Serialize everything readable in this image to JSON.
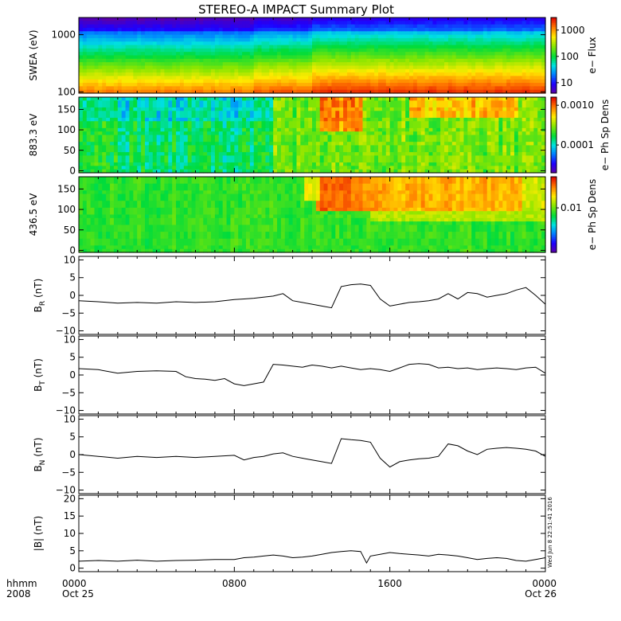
{
  "title": "STEREO-A IMPACT Summary Plot",
  "timestamp": "Wed Jun 8 22:51:41 2016",
  "x_axis": {
    "row1_label": "hhmm",
    "row2_label": "2008",
    "ticks": [
      {
        "hours": 0,
        "label": "0000",
        "date": "Oct 25"
      },
      {
        "hours": 8,
        "label": "0800",
        "date": ""
      },
      {
        "hours": 16,
        "label": "1600",
        "date": ""
      },
      {
        "hours": 24,
        "label": "0000",
        "date": "Oct 26"
      }
    ]
  },
  "chart_data": [
    {
      "type": "heatmap",
      "ylabel": "SWEA (eV)",
      "scale": "log",
      "ylim": [
        95,
        2000
      ],
      "yticks": [
        100,
        1000
      ],
      "ytick_labels": [
        "100",
        "1000"
      ],
      "colorbar_label": "e− Flux",
      "colorbar_ticks": [
        10,
        100,
        1000
      ],
      "colorbar_tick_labels": [
        "10",
        "100",
        "1000"
      ],
      "colorbar_log": true,
      "colorbar_range": [
        4,
        3000
      ]
    },
    {
      "type": "heatmap",
      "ylabel": "883.3 eV",
      "scale": "linear",
      "ylim": [
        -5,
        180
      ],
      "yticks": [
        0,
        50,
        100,
        150
      ],
      "ytick_labels": [
        "0",
        "50",
        "100",
        "150"
      ],
      "colorbar_label": "e− Ph Sp Dens",
      "colorbar_ticks": [
        0.0001,
        0.001
      ],
      "colorbar_tick_labels": [
        "0.0001",
        "0.0010"
      ],
      "colorbar_log": true,
      "colorbar_range": [
        2e-05,
        0.0016
      ]
    },
    {
      "type": "heatmap",
      "ylabel": "436.5 eV",
      "scale": "linear",
      "ylim": [
        -5,
        180
      ],
      "yticks": [
        0,
        50,
        100,
        150
      ],
      "ytick_labels": [
        "0",
        "50",
        "100",
        "150"
      ],
      "colorbar_label": "e− Ph Sp Dens",
      "colorbar_ticks": [
        0.01
      ],
      "colorbar_tick_labels": [
        "0.01"
      ],
      "colorbar_log": true,
      "colorbar_range": [
        0.001,
        0.05
      ]
    },
    {
      "type": "line",
      "ylabel_main": "B",
      "ylabel_sub": "R",
      "ylabel_unit": " (nT)",
      "ylim": [
        -11,
        11
      ],
      "yticks": [
        -10,
        -5,
        0,
        5,
        10
      ],
      "ytick_labels": [
        "−10",
        "−5",
        "0",
        "5",
        "10"
      ],
      "x_hours": [
        0,
        1,
        2,
        3,
        4,
        5,
        6,
        7,
        8,
        8.5,
        9,
        9.5,
        10,
        10.5,
        11,
        11.5,
        12,
        12.5,
        13,
        13.5,
        14,
        14.5,
        15,
        15.5,
        16,
        16.5,
        17,
        17.5,
        18,
        18.5,
        19,
        19.5,
        20,
        20.5,
        21,
        21.5,
        22,
        22.5,
        23,
        23.5,
        24
      ],
      "values": [
        -1.5,
        -1.8,
        -2.2,
        -2.0,
        -2.2,
        -1.8,
        -2.0,
        -1.8,
        -1.2,
        -1.0,
        -0.8,
        -0.5,
        -0.2,
        0.5,
        -1.5,
        -2.0,
        -2.5,
        -3.0,
        -3.5,
        2.5,
        3.0,
        3.2,
        2.8,
        -1.0,
        -3.0,
        -2.5,
        -2.0,
        -1.8,
        -1.5,
        -1.0,
        0.5,
        -1.0,
        0.8,
        0.5,
        -0.5,
        0.0,
        0.5,
        1.5,
        2.2,
        0.0,
        -2.5
      ]
    },
    {
      "type": "line",
      "ylabel_main": "B",
      "ylabel_sub": "T",
      "ylabel_unit": " (nT)",
      "ylim": [
        -11,
        11
      ],
      "yticks": [
        -10,
        -5,
        0,
        5,
        10
      ],
      "ytick_labels": [
        "−10",
        "−5",
        "0",
        "5",
        "10"
      ],
      "x_hours": [
        0,
        1,
        2,
        3,
        4,
        5,
        5.5,
        6,
        6.5,
        7,
        7.5,
        8,
        8.5,
        9,
        9.5,
        10,
        10.5,
        11,
        11.5,
        12,
        12.5,
        13,
        13.5,
        14,
        14.5,
        15,
        15.5,
        16,
        16.5,
        17,
        17.5,
        18,
        18.5,
        19,
        19.5,
        20,
        20.5,
        21,
        21.5,
        22,
        22.5,
        23,
        23.5,
        24
      ],
      "values": [
        1.8,
        1.5,
        0.5,
        1.0,
        1.2,
        1.0,
        -0.5,
        -1.0,
        -1.2,
        -1.5,
        -1.0,
        -2.5,
        -3.0,
        -2.5,
        -2.0,
        3.0,
        2.8,
        2.5,
        2.2,
        2.8,
        2.5,
        2.0,
        2.5,
        2.0,
        1.5,
        1.8,
        1.5,
        1.0,
        2.0,
        3.0,
        3.2,
        3.0,
        2.0,
        2.2,
        1.8,
        2.0,
        1.5,
        1.8,
        2.0,
        1.8,
        1.5,
        2.0,
        2.2,
        0.5
      ]
    },
    {
      "type": "line",
      "ylabel_main": "B",
      "ylabel_sub": "N",
      "ylabel_unit": " (nT)",
      "ylim": [
        -11,
        11
      ],
      "yticks": [
        -10,
        -5,
        0,
        5,
        10
      ],
      "ytick_labels": [
        "−10",
        "−5",
        "0",
        "5",
        "10"
      ],
      "x_hours": [
        0,
        1,
        2,
        3,
        4,
        5,
        6,
        7,
        8,
        8.5,
        9,
        9.5,
        10,
        10.5,
        11,
        11.5,
        12,
        12.5,
        13,
        13.5,
        14,
        14.5,
        15,
        15.5,
        16,
        16.5,
        17,
        17.5,
        18,
        18.5,
        19,
        19.5,
        20,
        20.5,
        21,
        21.5,
        22,
        22.5,
        23,
        23.5,
        24
      ],
      "values": [
        0.0,
        -0.5,
        -1.0,
        -0.5,
        -0.8,
        -0.5,
        -0.8,
        -0.5,
        -0.2,
        -1.5,
        -0.8,
        -0.5,
        0.2,
        0.5,
        -0.5,
        -1.0,
        -1.5,
        -2.0,
        -2.5,
        4.5,
        4.2,
        4.0,
        3.5,
        -1.0,
        -3.5,
        -2.0,
        -1.5,
        -1.2,
        -1.0,
        -0.5,
        3.0,
        2.5,
        1.0,
        0.0,
        1.5,
        1.8,
        2.0,
        1.8,
        1.5,
        1.0,
        -0.5
      ]
    },
    {
      "type": "line",
      "ylabel_main": "|B|",
      "ylabel_sub": "",
      "ylabel_unit": " (nT)",
      "ylim": [
        -1,
        21
      ],
      "yticks": [
        0,
        5,
        10,
        15,
        20
      ],
      "ytick_labels": [
        "0",
        "5",
        "10",
        "15",
        "20"
      ],
      "x_hours": [
        0,
        1,
        2,
        3,
        4,
        5,
        6,
        7,
        8,
        8.5,
        9,
        9.5,
        10,
        10.5,
        11,
        11.5,
        12,
        12.5,
        13,
        13.5,
        14,
        14.5,
        14.8,
        15,
        15.5,
        16,
        16.5,
        17,
        17.5,
        18,
        18.5,
        19,
        19.5,
        20,
        20.5,
        21,
        21.5,
        22,
        22.5,
        23,
        23.5,
        24
      ],
      "values": [
        2.0,
        2.2,
        2.0,
        2.3,
        2.0,
        2.2,
        2.3,
        2.5,
        2.5,
        3.0,
        3.2,
        3.5,
        3.8,
        3.5,
        3.0,
        3.2,
        3.5,
        4.0,
        4.5,
        4.8,
        5.0,
        4.8,
        1.5,
        3.5,
        4.0,
        4.5,
        4.2,
        4.0,
        3.8,
        3.5,
        4.0,
        3.8,
        3.5,
        3.0,
        2.5,
        2.8,
        3.0,
        2.8,
        2.2,
        2.0,
        2.5,
        3.0
      ]
    }
  ]
}
